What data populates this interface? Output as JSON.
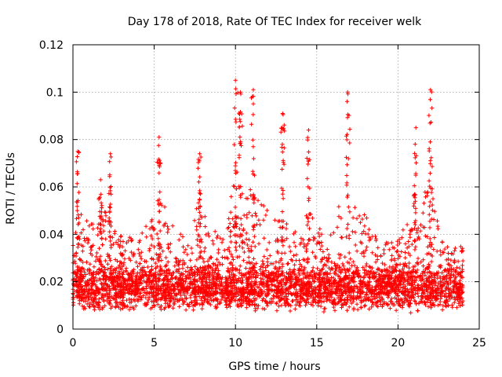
{
  "chart_data": {
    "type": "scatter",
    "title": "Day 178 of 2018, Rate Of TEC Index for receiver welk",
    "xlabel": "GPS time / hours",
    "ylabel": "ROTI / TECUs",
    "xlim": [
      0,
      25
    ],
    "ylim": [
      0,
      0.12
    ],
    "xticks": [
      0,
      5,
      10,
      15,
      20,
      25
    ],
    "xtick_labels": [
      "0",
      "5",
      "10",
      "15",
      "20",
      "25"
    ],
    "yticks": [
      0,
      0.02,
      0.04,
      0.06,
      0.08,
      0.1,
      0.12
    ],
    "ytick_labels": [
      "0",
      "0.02",
      "0.04",
      "0.06",
      "0.08",
      "0.1",
      "0.12"
    ],
    "grid": true,
    "marker": "+",
    "color": "#ff0000",
    "x_range_of_data": [
      0,
      24
    ],
    "typical_band": [
      0.01,
      0.025
    ],
    "peaks": [
      {
        "x": 0.3,
        "y": 0.075
      },
      {
        "x": 1.7,
        "y": 0.063
      },
      {
        "x": 2.3,
        "y": 0.074
      },
      {
        "x": 5.3,
        "y": 0.081
      },
      {
        "x": 7.8,
        "y": 0.074
      },
      {
        "x": 10.0,
        "y": 0.105
      },
      {
        "x": 10.3,
        "y": 0.1
      },
      {
        "x": 11.1,
        "y": 0.101
      },
      {
        "x": 12.9,
        "y": 0.091
      },
      {
        "x": 14.5,
        "y": 0.084
      },
      {
        "x": 16.9,
        "y": 0.1
      },
      {
        "x": 21.1,
        "y": 0.085
      },
      {
        "x": 22.0,
        "y": 0.101
      }
    ]
  }
}
